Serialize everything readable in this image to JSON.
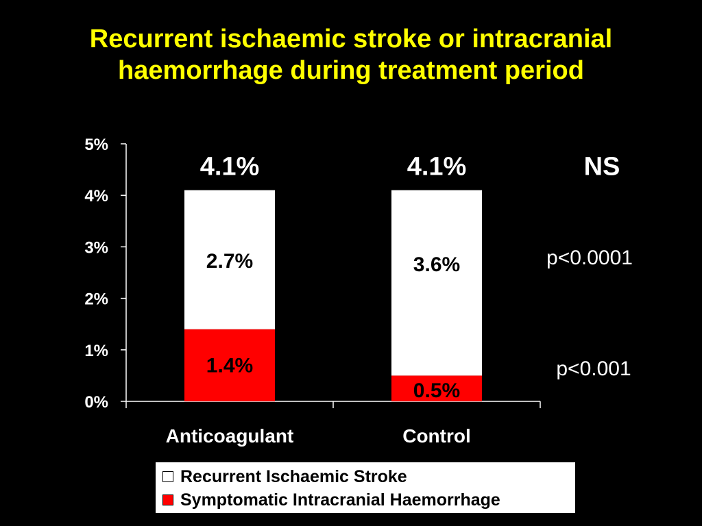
{
  "title": {
    "line1": "Recurrent ischaemic stroke or intracranial",
    "line2": "haemorrhage during treatment period"
  },
  "colors": {
    "title": "#ffff00",
    "background": "#000000",
    "ischaemic": "#ffffff",
    "haemorrhage": "#ff0000"
  },
  "chart_data": {
    "type": "bar",
    "stacked": true,
    "categories": [
      "Anticoagulant",
      "Control"
    ],
    "series": [
      {
        "name": "Symptomatic Intracranial Haemorrhage",
        "values": [
          1.4,
          0.5
        ],
        "labels": [
          "1.4%",
          "0.5%"
        ],
        "color": "#ff0000"
      },
      {
        "name": "Recurrent Ischaemic Stroke",
        "values": [
          2.7,
          3.6
        ],
        "labels": [
          "2.7%",
          "3.6%"
        ],
        "color": "#ffffff"
      }
    ],
    "totals": [
      "4.1%",
      "4.1%"
    ],
    "ylim": [
      0,
      5
    ],
    "yticks": [
      "0%",
      "1%",
      "2%",
      "3%",
      "4%",
      "5%"
    ],
    "annotations": {
      "totals_significance": "NS",
      "ischaemic_p": "p<0.0001",
      "haemorrhage_p": "p<0.001"
    },
    "legend": [
      {
        "label": "Recurrent Ischaemic Stroke",
        "color": "#ffffff"
      },
      {
        "label": "Symptomatic Intracranial Haemorrhage",
        "color": "#ff0000"
      }
    ],
    "legend_position": "bottom",
    "grid": false
  }
}
